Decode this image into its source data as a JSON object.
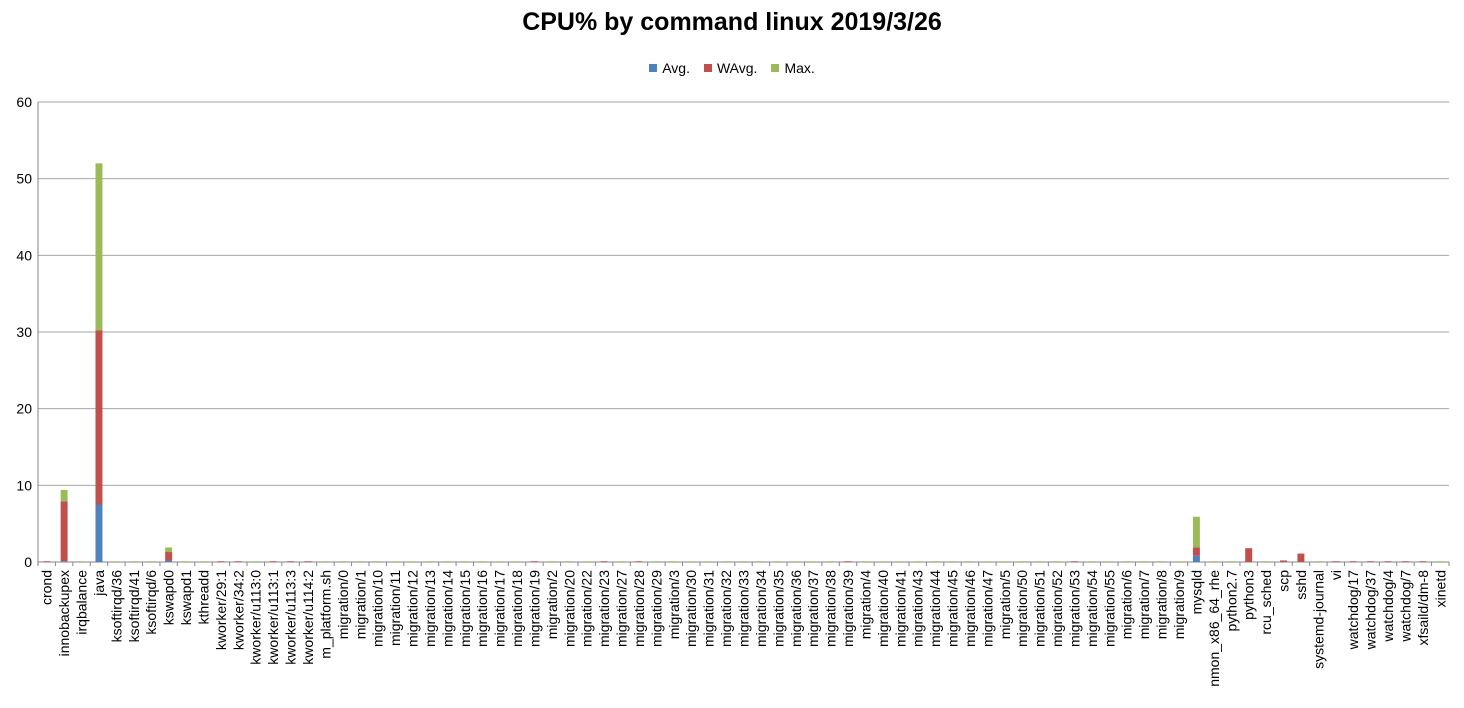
{
  "chart_data": {
    "type": "bar",
    "stacked": true,
    "title": "CPU% by command linux  2019/3/26",
    "xlabel": "",
    "ylabel": "",
    "ylim": [
      0,
      60
    ],
    "yticks": [
      0,
      10,
      20,
      30,
      40,
      50,
      60
    ],
    "grid": true,
    "legend_position": "top",
    "categories": [
      "crond",
      "innobackupex",
      "irqbalance",
      "java",
      "ksoftirqd/36",
      "ksoftirqd/41",
      "ksoftirqd/6",
      "kswapd0",
      "kswapd1",
      "kthreadd",
      "kworker/29:1",
      "kworker/34:2",
      "kworker/u113:0",
      "kworker/u113:1",
      "kworker/u113:3",
      "kworker/u114:2",
      "m_platform.sh",
      "migration/0",
      "migration/1",
      "migration/10",
      "migration/11",
      "migration/12",
      "migration/13",
      "migration/14",
      "migration/15",
      "migration/16",
      "migration/17",
      "migration/18",
      "migration/19",
      "migration/2",
      "migration/20",
      "migration/22",
      "migration/23",
      "migration/27",
      "migration/28",
      "migration/29",
      "migration/3",
      "migration/30",
      "migration/31",
      "migration/32",
      "migration/33",
      "migration/34",
      "migration/35",
      "migration/36",
      "migration/37",
      "migration/38",
      "migration/39",
      "migration/4",
      "migration/40",
      "migration/41",
      "migration/43",
      "migration/44",
      "migration/45",
      "migration/46",
      "migration/47",
      "migration/5",
      "migration/50",
      "migration/51",
      "migration/52",
      "migration/53",
      "migration/54",
      "migration/55",
      "migration/6",
      "migration/7",
      "migration/8",
      "migration/9",
      "mysqld",
      "nmon_x86_64_rhe",
      "python2.7",
      "python3",
      "rcu_sched",
      "scp",
      "sshd",
      "systemd-journal",
      "vi",
      "watchdog/17",
      "watchdog/37",
      "watchdog/4",
      "watchdog/7",
      "xfsaild/dm-8",
      "xinetd"
    ],
    "series": [
      {
        "name": "Avg.",
        "color": "#4f81bd",
        "values": [
          0,
          0.1,
          0,
          7.5,
          0,
          0,
          0,
          0.2,
          0,
          0,
          0,
          0,
          0,
          0,
          0,
          0,
          0,
          0,
          0,
          0,
          0,
          0,
          0,
          0,
          0,
          0,
          0,
          0,
          0,
          0,
          0,
          0,
          0,
          0,
          0,
          0,
          0,
          0,
          0,
          0,
          0,
          0,
          0,
          0,
          0,
          0,
          0,
          0,
          0,
          0,
          0,
          0,
          0,
          0,
          0,
          0,
          0,
          0,
          0,
          0,
          0,
          0,
          0,
          0,
          0,
          0,
          0.8,
          0,
          0,
          0,
          0,
          0,
          0,
          0,
          0,
          0,
          0,
          0,
          0,
          0,
          0
        ]
      },
      {
        "name": "WAvg.",
        "color": "#c0504d",
        "values": [
          0.1,
          7.8,
          0,
          22.7,
          0,
          0,
          0,
          1.1,
          0,
          0,
          0.1,
          0.1,
          0,
          0.1,
          0.1,
          0.1,
          0,
          0,
          0,
          0,
          0,
          0,
          0,
          0,
          0,
          0,
          0,
          0,
          0.1,
          0,
          0,
          0,
          0.1,
          0,
          0.1,
          0,
          0,
          0,
          0,
          0,
          0,
          0,
          0,
          0,
          0,
          0,
          0.1,
          0,
          0,
          0,
          0,
          0,
          0,
          0,
          0,
          0,
          0,
          0,
          0,
          0.1,
          0,
          0,
          0,
          0,
          0,
          0,
          1.1,
          0,
          0,
          1.8,
          0,
          0.2,
          1.1,
          0,
          0.1,
          0.1,
          0.1,
          0.1,
          0.1,
          0.1,
          0
        ]
      },
      {
        "name": "Max.",
        "color": "#9bbb59",
        "values": [
          0,
          1.5,
          0.1,
          21.8,
          0.1,
          0.1,
          0.1,
          0.6,
          0.1,
          0.1,
          0,
          0,
          0.1,
          0,
          0,
          0,
          0.1,
          0.1,
          0.1,
          0.1,
          0.1,
          0.1,
          0.1,
          0.1,
          0.1,
          0.1,
          0.1,
          0.1,
          0,
          0.1,
          0.1,
          0.1,
          0,
          0.1,
          0,
          0.1,
          0.1,
          0.1,
          0.1,
          0.1,
          0.1,
          0.1,
          0.1,
          0.1,
          0.1,
          0.1,
          0,
          0.1,
          0.1,
          0.1,
          0.1,
          0.1,
          0.1,
          0.1,
          0.1,
          0.1,
          0.1,
          0.1,
          0.1,
          0,
          0.1,
          0.1,
          0.1,
          0.1,
          0.1,
          0.1,
          4.0,
          0.1,
          0.1,
          0,
          0.1,
          0,
          0,
          0.1,
          0,
          0,
          0,
          0,
          0,
          0,
          0.1
        ]
      }
    ]
  }
}
